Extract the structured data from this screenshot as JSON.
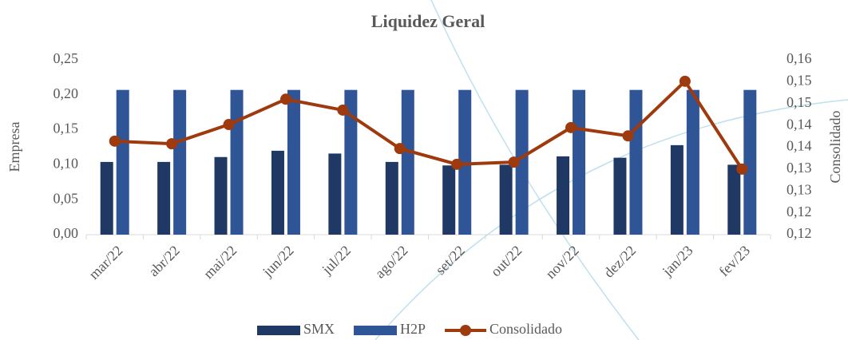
{
  "chart_data": {
    "type": "bar_line",
    "title": "Liquidez Geral",
    "ylabel": "Empresa",
    "y2label": "Consolidado",
    "categories": [
      "mar/22",
      "abr/22",
      "mai/22",
      "jun/22",
      "jul/22",
      "ago/22",
      "set/22",
      "out/22",
      "nov/22",
      "dez/22",
      "jan/23",
      "fev/23"
    ],
    "series": [
      {
        "name": "SMX",
        "type": "bar",
        "color": "#203864",
        "values": [
          0.104,
          0.104,
          0.111,
          0.12,
          0.116,
          0.104,
          0.099,
          0.1,
          0.112,
          0.11,
          0.128,
          0.1
        ]
      },
      {
        "name": "H2P",
        "type": "bar",
        "color": "#2f5597",
        "values": [
          0.207,
          0.207,
          0.207,
          0.207,
          0.207,
          0.207,
          0.207,
          0.207,
          0.207,
          0.207,
          0.207,
          0.207
        ]
      },
      {
        "name": "Consolidado",
        "type": "line",
        "axis": "y2",
        "color": "#9e3a0e",
        "values": [
          0.1364,
          0.1358,
          0.1402,
          0.146,
          0.1435,
          0.1347,
          0.1311,
          0.1316,
          0.1395,
          0.1376,
          0.1501,
          0.13
        ]
      }
    ],
    "ylim": [
      0,
      0.25
    ],
    "yticks": [
      {
        "value": 0,
        "label": "0,00"
      },
      {
        "value": 0.05,
        "label": "0,05"
      },
      {
        "value": 0.1,
        "label": "0,10"
      },
      {
        "value": 0.15,
        "label": "0,15"
      },
      {
        "value": 0.2,
        "label": "0,20"
      },
      {
        "value": 0.25,
        "label": "0,25"
      }
    ],
    "y2lim": [
      0.115,
      0.155
    ],
    "y2ticks": [
      {
        "value": 0.115,
        "label": "0,12"
      },
      {
        "value": 0.12,
        "label": "0,12"
      },
      {
        "value": 0.125,
        "label": "0,13"
      },
      {
        "value": 0.13,
        "label": "0,13"
      },
      {
        "value": 0.135,
        "label": "0,14"
      },
      {
        "value": 0.14,
        "label": "0,14"
      },
      {
        "value": 0.145,
        "label": "0,15"
      },
      {
        "value": 0.15,
        "label": "0,15"
      },
      {
        "value": 0.155,
        "label": "0,16"
      }
    ],
    "grid": false,
    "legend": "bottom"
  }
}
